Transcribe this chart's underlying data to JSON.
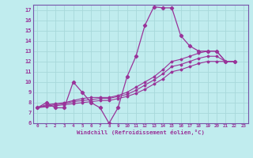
{
  "xlabel": "Windchill (Refroidissement éolien,°C)",
  "background_color": "#c0ecee",
  "grid_color": "#a8d8da",
  "line_color": "#993399",
  "spine_color": "#7755aa",
  "xlim": [
    -0.5,
    23.5
  ],
  "ylim": [
    6,
    17.5
  ],
  "yticks": [
    6,
    7,
    8,
    9,
    10,
    11,
    12,
    13,
    14,
    15,
    16,
    17
  ],
  "xticks": [
    0,
    1,
    2,
    3,
    4,
    5,
    6,
    7,
    8,
    9,
    10,
    11,
    12,
    13,
    14,
    15,
    16,
    17,
    18,
    19,
    20,
    21,
    22,
    23
  ],
  "series_main": [
    7.5,
    8.0,
    7.5,
    7.5,
    10.0,
    9.0,
    8.0,
    7.5,
    6.0,
    7.5,
    10.5,
    12.5,
    15.5,
    17.3,
    17.2,
    17.2,
    14.5,
    13.5,
    13.0,
    13.0,
    13.0,
    12.0,
    12.0
  ],
  "series_line1": [
    7.5,
    7.8,
    7.9,
    8.0,
    8.2,
    8.4,
    8.5,
    8.5,
    8.5,
    8.7,
    9.0,
    9.5,
    10.0,
    10.5,
    11.2,
    12.0,
    12.2,
    12.5,
    12.8,
    13.0,
    13.0,
    12.0,
    12.0
  ],
  "series_line2": [
    7.5,
    7.7,
    7.8,
    7.9,
    8.1,
    8.2,
    8.3,
    8.4,
    8.4,
    8.6,
    8.8,
    9.2,
    9.7,
    10.2,
    10.8,
    11.5,
    11.7,
    12.0,
    12.3,
    12.5,
    12.5,
    12.0,
    12.0
  ],
  "series_line3": [
    7.5,
    7.6,
    7.7,
    7.8,
    7.9,
    8.0,
    8.1,
    8.2,
    8.2,
    8.4,
    8.6,
    8.9,
    9.3,
    9.8,
    10.3,
    11.0,
    11.2,
    11.5,
    11.8,
    12.0,
    12.0,
    12.0,
    12.0
  ]
}
